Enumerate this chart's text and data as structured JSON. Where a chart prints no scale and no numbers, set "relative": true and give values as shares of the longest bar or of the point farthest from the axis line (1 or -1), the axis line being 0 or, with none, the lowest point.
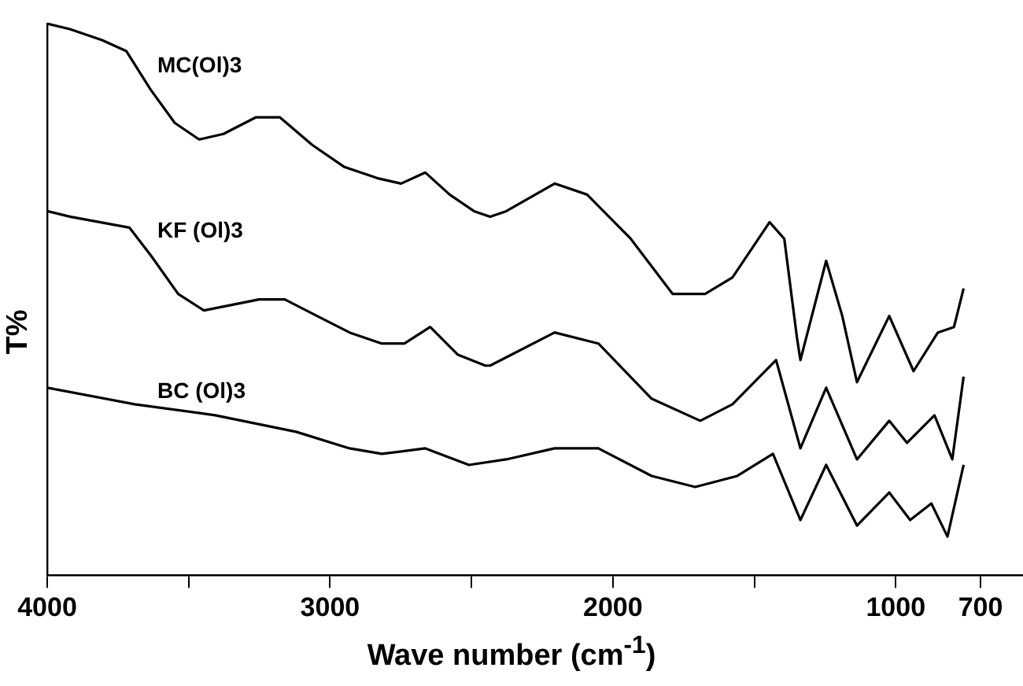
{
  "chart_data": {
    "type": "line",
    "relative": true,
    "xlabel": "Wave number (cm$^{-1}$)",
    "ylabel": "T%",
    "xlim": [
      4000,
      550
    ],
    "xticks": [
      4000,
      {
        "value": 3500,
        "label": null
      },
      3000,
      {
        "value": 2500,
        "label": null
      },
      2000,
      {
        "value": 1500,
        "label": null
      },
      1000,
      700
    ],
    "legend": false,
    "grid": false,
    "marker": "none",
    "line_style": "solid",
    "series": [
      {
        "name": "MC(Ol)3",
        "color": "#000000",
        "x": [
          4000,
          3920,
          3806,
          3720,
          3634,
          3549,
          3463,
          3377,
          3263,
          3177,
          3063,
          2949,
          2834,
          2749,
          2663,
          2577,
          2491,
          2434,
          2377,
          2206,
          2091,
          1937,
          1789,
          1674,
          1577,
          1446,
          1394,
          1349,
          1337,
          1246,
          1189,
          1137,
          1023,
          937,
          851,
          794,
          760
        ],
        "values": [
          1.0,
          0.99,
          0.97,
          0.95,
          0.88,
          0.82,
          0.79,
          0.8,
          0.83,
          0.83,
          0.78,
          0.74,
          0.72,
          0.71,
          0.73,
          0.69,
          0.66,
          0.65,
          0.66,
          0.71,
          0.69,
          0.61,
          0.51,
          0.51,
          0.54,
          0.64,
          0.61,
          0.43,
          0.39,
          0.57,
          0.47,
          0.35,
          0.47,
          0.37,
          0.44,
          0.45,
          0.52
        ]
      },
      {
        "name": "KF (Ol)3",
        "color": "#000000",
        "x": [
          4000,
          3920,
          3709,
          3634,
          3537,
          3446,
          3251,
          3160,
          3046,
          2931,
          2817,
          2737,
          2646,
          2549,
          2451,
          2434,
          2206,
          2051,
          1863,
          1691,
          1577,
          1423,
          1337,
          1246,
          1137,
          1023,
          960,
          863,
          800,
          760
        ],
        "values": [
          0.66,
          0.65,
          0.63,
          0.58,
          0.51,
          0.48,
          0.5,
          0.5,
          0.47,
          0.44,
          0.42,
          0.42,
          0.45,
          0.4,
          0.38,
          0.38,
          0.44,
          0.42,
          0.32,
          0.28,
          0.31,
          0.39,
          0.23,
          0.34,
          0.21,
          0.28,
          0.24,
          0.29,
          0.21,
          0.36
        ]
      },
      {
        "name": "BC (Ol)3",
        "color": "#000000",
        "x": [
          4000,
          3691,
          3406,
          3120,
          2931,
          2817,
          2663,
          2509,
          2377,
          2206,
          2051,
          1863,
          1709,
          1560,
          1434,
          1337,
          1246,
          1137,
          1023,
          949,
          874,
          817,
          760
        ],
        "values": [
          0.34,
          0.31,
          0.29,
          0.26,
          0.23,
          0.22,
          0.23,
          0.2,
          0.21,
          0.23,
          0.23,
          0.18,
          0.16,
          0.18,
          0.22,
          0.1,
          0.2,
          0.09,
          0.15,
          0.1,
          0.13,
          0.07,
          0.2
        ]
      }
    ]
  }
}
